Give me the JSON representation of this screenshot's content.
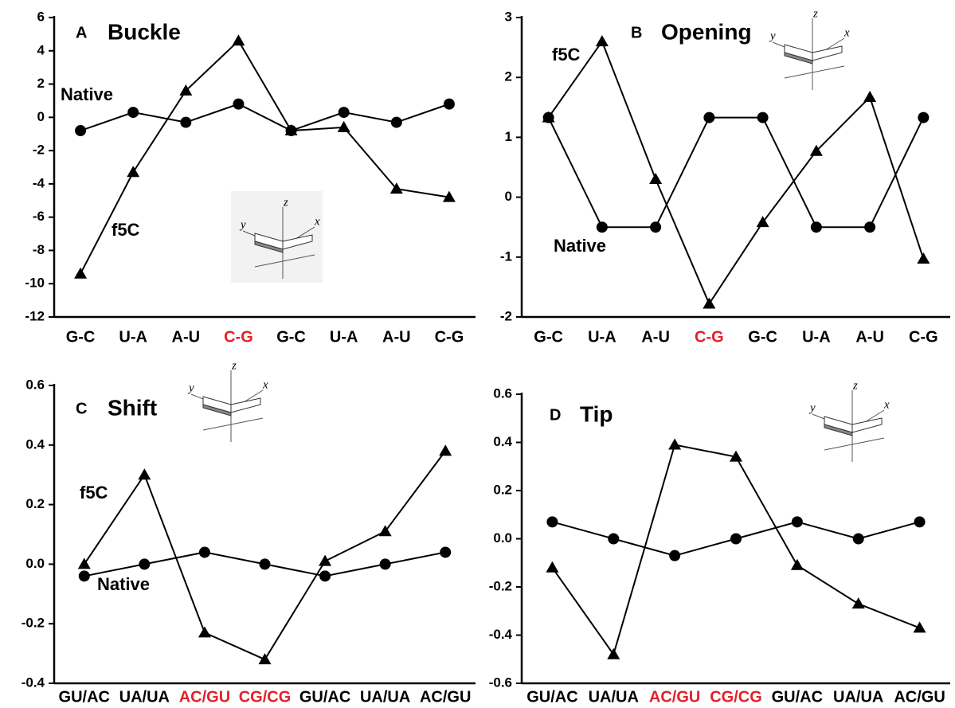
{
  "chart_data": [
    {
      "type": "line",
      "panel": "A",
      "title": "Buckle",
      "categories": [
        "G-C",
        "U-A",
        "A-U",
        "C-G",
        "G-C",
        "U-A",
        "A-U",
        "C-G"
      ],
      "category_colors": [
        "#000000",
        "#000000",
        "#000000",
        "#e3212b",
        "#000000",
        "#000000",
        "#000000",
        "#000000"
      ],
      "ylim": [
        -12,
        6
      ],
      "yticks": [
        -12,
        -10,
        -8,
        -6,
        -4,
        -2,
        0,
        2,
        4,
        6
      ],
      "series": [
        {
          "name": "Native",
          "marker": "circle",
          "color": "#000000",
          "values": [
            -0.8,
            0.3,
            -0.3,
            0.8,
            -0.8,
            0.3,
            -0.3,
            0.8
          ]
        },
        {
          "name": "f5C",
          "marker": "triangle",
          "color": "#000000",
          "values": [
            -9.4,
            -3.3,
            1.6,
            4.6,
            -0.8,
            -0.6,
            -4.3,
            -4.8
          ]
        }
      ],
      "inset_axis_labels": [
        "x",
        "y",
        "z"
      ]
    },
    {
      "type": "line",
      "panel": "B",
      "title": "Opening",
      "categories": [
        "G-C",
        "U-A",
        "A-U",
        "C-G",
        "G-C",
        "U-A",
        "A-U",
        "C-G"
      ],
      "category_colors": [
        "#000000",
        "#000000",
        "#000000",
        "#e3212b",
        "#000000",
        "#000000",
        "#000000",
        "#000000"
      ],
      "ylim": [
        -2,
        3
      ],
      "yticks": [
        -2,
        -1,
        0,
        1,
        2,
        3
      ],
      "series": [
        {
          "name": "Native",
          "marker": "circle",
          "color": "#000000",
          "values": [
            1.33,
            -0.5,
            -0.5,
            1.33,
            1.33,
            -0.5,
            -0.5,
            1.33
          ]
        },
        {
          "name": "f5C",
          "marker": "triangle",
          "color": "#000000",
          "values": [
            1.33,
            2.6,
            0.3,
            -1.78,
            -0.42,
            0.77,
            1.67,
            -1.03
          ]
        }
      ],
      "inset_axis_labels": [
        "x",
        "y",
        "z"
      ]
    },
    {
      "type": "line",
      "panel": "C",
      "title": "Shift",
      "categories": [
        "GU/AC",
        "UA/UA",
        "AC/GU",
        "CG/CG",
        "GU/AC",
        "UA/UA",
        "AC/GU"
      ],
      "category_colors": [
        "#000000",
        "#000000",
        "#e3212b",
        "#e3212b",
        "#000000",
        "#000000",
        "#000000"
      ],
      "ylim": [
        -0.4,
        0.6
      ],
      "yticks": [
        -0.4,
        -0.2,
        {
          "value": 0,
          "label": "0.0"
        },
        0.2,
        0.4,
        0.6
      ],
      "series": [
        {
          "name": "Native",
          "marker": "circle",
          "color": "#000000",
          "values": [
            -0.04,
            0,
            0.04,
            0,
            -0.04,
            0,
            0.04
          ]
        },
        {
          "name": "f5C",
          "marker": "triangle",
          "color": "#000000",
          "values": [
            0.0,
            0.3,
            -0.23,
            -0.32,
            0.01,
            0.11,
            0.38
          ]
        }
      ],
      "inset_axis_labels": [
        "x",
        "y",
        "z"
      ]
    },
    {
      "type": "line",
      "panel": "D",
      "title": "Tip",
      "categories": [
        "GU/AC",
        "UA/UA",
        "AC/GU",
        "CG/CG",
        "GU/AC",
        "UA/UA",
        "AC/GU"
      ],
      "category_colors": [
        "#000000",
        "#000000",
        "#e3212b",
        "#e3212b",
        "#000000",
        "#000000",
        "#000000"
      ],
      "ylim": [
        -0.6,
        0.6
      ],
      "yticks": [
        -0.6,
        -0.4,
        -0.2,
        {
          "value": 0,
          "label": "0.0"
        },
        0.2,
        0.4,
        0.6
      ],
      "series": [
        {
          "marker": "circle",
          "color": "#000000",
          "values": [
            0.07,
            0,
            -0.07,
            0,
            0.07,
            0,
            0.07
          ]
        },
        {
          "marker": "triangle",
          "color": "#000000",
          "values": [
            -0.12,
            -0.48,
            0.39,
            0.34,
            -0.11,
            -0.27,
            -0.37
          ]
        }
      ],
      "inset_axis_labels": [
        "x",
        "y",
        "z"
      ]
    }
  ]
}
